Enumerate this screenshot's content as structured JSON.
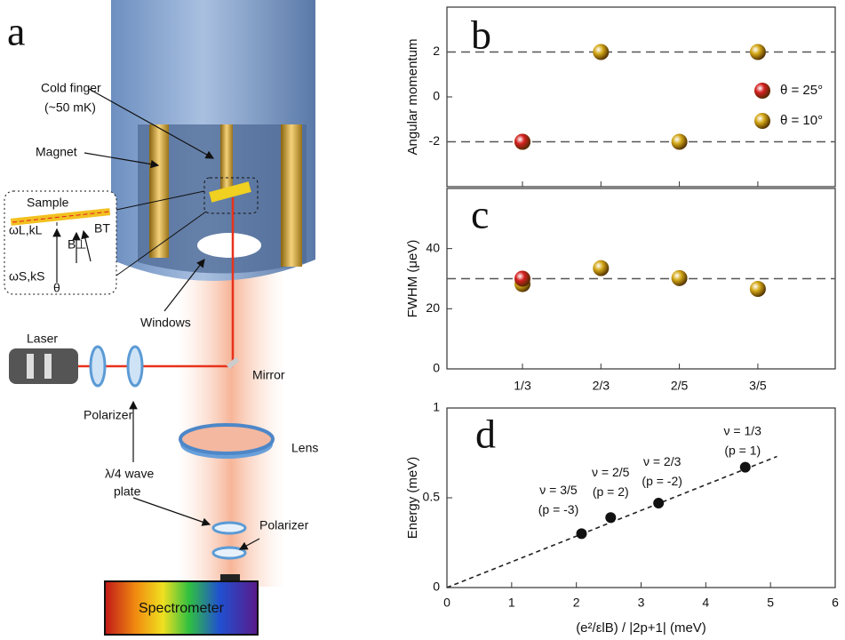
{
  "panel_a": {
    "label": "a",
    "cold_finger": [
      "Cold finger",
      "(~50 mK)"
    ],
    "magnet": "Magnet",
    "sample": "Sample",
    "inset_symbols": [
      "ωL,kL",
      "ωS,kS",
      "B⊥",
      "BT",
      "θ"
    ],
    "windows": "Windows",
    "laser": "Laser",
    "mirror": "Mirror",
    "polarizer_1": "Polarizer",
    "lens": "Lens",
    "wave_plate": [
      "λ/4 wave",
      "plate"
    ],
    "polarizer_2": "Polarizer",
    "spectrometer": "Spectrometer"
  },
  "chart_data": [
    {
      "type": "scatter",
      "panel": "b",
      "ylabel": "Angular momentum",
      "categories": [
        null,
        null,
        null,
        null
      ],
      "ylim": [
        -4,
        4
      ],
      "yticks": [
        -2,
        0,
        2
      ],
      "reference_lines": [
        2,
        -2
      ],
      "legend_position": "right",
      "series": [
        {
          "name": "θ = 25°",
          "color": "#d42020",
          "values": [
            -2,
            null,
            null,
            null
          ]
        },
        {
          "name": "θ = 10°",
          "color": "#d4a817",
          "values": [
            -2,
            2,
            -2,
            2
          ]
        }
      ]
    },
    {
      "type": "scatter",
      "panel": "c",
      "ylabel": "FWHM (μeV)",
      "categories": [
        "1/3",
        "2/3",
        "2/5",
        "3/5"
      ],
      "ylim": [
        0,
        60
      ],
      "yticks": [
        0,
        20,
        40
      ],
      "reference_lines": [
        30
      ],
      "series": [
        {
          "name": null,
          "color": "#d42020",
          "values": [
            30,
            null,
            null,
            null
          ]
        },
        {
          "name": null,
          "color": "#d4a817",
          "values": [
            28.2,
            33.5,
            30.2,
            26.6
          ]
        }
      ]
    },
    {
      "type": "xy",
      "panel": "d",
      "ylabel": "Energy (meV)",
      "xlabel": "(e²/εlB) / |2p+1| (meV)",
      "x": [
        2.08,
        2.53,
        3.27,
        4.61
      ],
      "values": [
        0.3,
        0.39,
        0.47,
        0.67
      ],
      "color": "#111111",
      "xlim": [
        0,
        6
      ],
      "xticks": [
        0,
        1,
        2,
        3,
        4,
        5,
        6
      ],
      "ylim": [
        0,
        1
      ],
      "yticks": [
        0,
        0.5,
        1
      ],
      "fit_line": {
        "x": [
          0,
          5.1
        ],
        "values": [
          0,
          0.73
        ]
      },
      "annotations": [
        [
          "ν = 3/5",
          "(p = -3)"
        ],
        [
          "ν = 2/5",
          "(p = 2)"
        ],
        [
          "ν = 2/3",
          "(p = -2)"
        ],
        [
          "ν = 1/3",
          "(p = 1)"
        ]
      ]
    }
  ]
}
